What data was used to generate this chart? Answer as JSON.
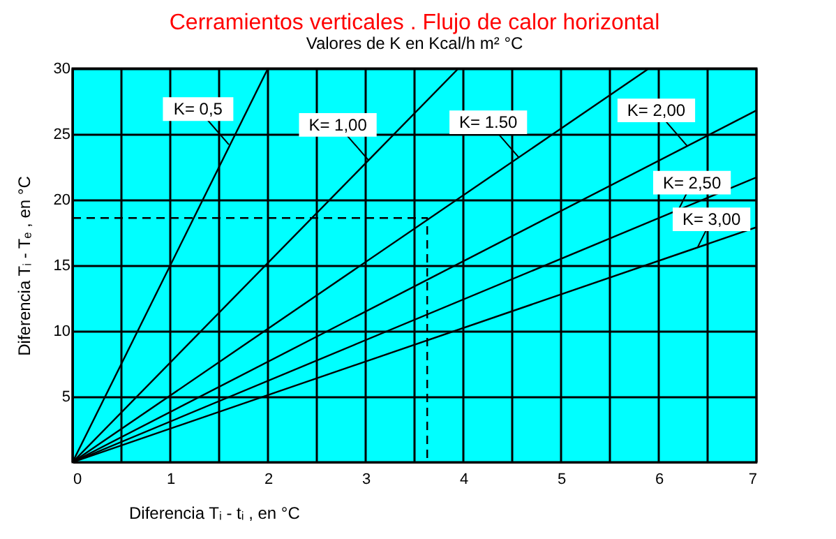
{
  "chart_data": {
    "type": "line",
    "title": "Cerramientos verticales . Flujo de calor horizontal",
    "subtitle": "Valores de K en Kcal/h m² °C",
    "xlabel": "Diferencia  Tᵢ - tᵢ , en °C",
    "ylabel": "Diferencia  Tᵢ - Tₑ , en °C",
    "series": [
      {
        "color": "#000000",
        "x": [
          0,
          2.0
        ],
        "values": [
          0,
          30
        ]
      },
      {
        "color": "#000000",
        "x": [
          0,
          3.95
        ],
        "values": [
          0,
          30
        ]
      },
      {
        "color": "#000000",
        "x": [
          0,
          5.9
        ],
        "values": [
          0,
          30
        ]
      },
      {
        "color": "#000000",
        "x": [
          0,
          7
        ],
        "values": [
          0,
          26.8
        ]
      },
      {
        "color": "#000000",
        "x": [
          0,
          7
        ],
        "values": [
          0,
          21.7
        ]
      },
      {
        "color": "#000000",
        "x": [
          0,
          7
        ],
        "values": [
          0,
          17.9
        ]
      },
      {
        "color": "#000000",
        "x": [
          0,
          3.63,
          3.63
        ],
        "values": [
          18.6,
          18.6,
          0
        ],
        "line_style": "dashed"
      }
    ],
    "annotations": [
      {
        "text": "K= 0,5",
        "x": 1.6,
        "y": 24.2
      },
      {
        "text": "K= 1,00",
        "x": 3.03,
        "y": 23.0
      },
      {
        "text": "K= 1.50",
        "x": 4.57,
        "y": 23.2
      },
      {
        "text": "K= 2,00",
        "x": 6.29,
        "y": 24.1
      },
      {
        "text": "K= 2,50",
        "x": 6.2,
        "y": 19.2
      },
      {
        "text": "K= 3,00",
        "x": 6.4,
        "y": 16.4
      }
    ],
    "xlim": [
      0,
      7
    ],
    "ylim": [
      0,
      30
    ],
    "xticks": [
      0,
      {
        "value": 0.5,
        "label": null
      },
      1,
      {
        "value": 1.5,
        "label": null
      },
      2,
      {
        "value": 2.5,
        "label": null
      },
      3,
      {
        "value": 3.5,
        "label": null
      },
      4,
      {
        "value": 4.5,
        "label": null
      },
      5,
      {
        "value": 5.5,
        "label": null
      },
      6,
      {
        "value": 6.5,
        "label": null
      },
      7
    ],
    "yticks": [
      5,
      10,
      15,
      20,
      25,
      30
    ],
    "grid": true,
    "line_style": "solid",
    "marker": "none"
  }
}
